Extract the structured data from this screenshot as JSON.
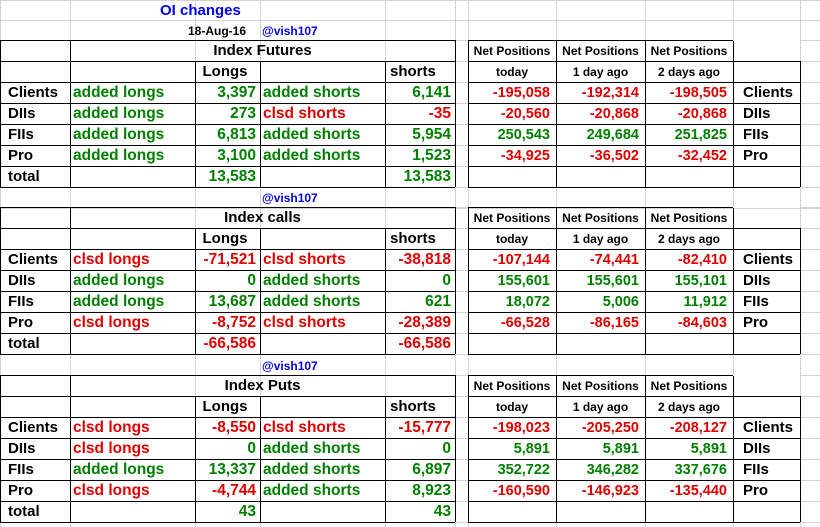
{
  "title": "OI changes",
  "date": "18-Aug-16",
  "handle": "@vish107",
  "colors": {
    "positive": "#008000",
    "negative": "#e00000",
    "accent": "#0000ee",
    "grid": "#000000"
  },
  "headers": {
    "longs": "Longs",
    "shorts": "shorts",
    "net_positions": "Net Positions",
    "today": "today",
    "one_day_ago": "1 day ago",
    "two_days_ago": "2 days ago",
    "total": "total"
  },
  "sections": [
    {
      "title": "Index Futures",
      "rows": [
        {
          "label": "Clients",
          "long_action": "added longs",
          "longs": "3,397",
          "short_action": "added shorts",
          "shorts": "6,141",
          "net": [
            "-195,058",
            "-192,314",
            "-198,505"
          ]
        },
        {
          "label": "DIIs",
          "long_action": "added longs",
          "longs": "273",
          "short_action": "clsd shorts",
          "shorts": "-35",
          "net": [
            "-20,560",
            "-20,868",
            "-20,868"
          ]
        },
        {
          "label": "FIIs",
          "long_action": "added longs",
          "longs": "6,813",
          "short_action": "added shorts",
          "shorts": "5,954",
          "net": [
            "250,543",
            "249,684",
            "251,825"
          ]
        },
        {
          "label": "Pro",
          "long_action": "added longs",
          "longs": "3,100",
          "short_action": "added shorts",
          "shorts": "1,523",
          "net": [
            "-34,925",
            "-36,502",
            "-32,452"
          ]
        }
      ],
      "total_longs": "13,583",
      "total_shorts": "13,583"
    },
    {
      "title": "Index calls",
      "rows": [
        {
          "label": "Clients",
          "long_action": "clsd longs",
          "longs": "-71,521",
          "short_action": "clsd shorts",
          "shorts": "-38,818",
          "net": [
            "-107,144",
            "-74,441",
            "-82,410"
          ]
        },
        {
          "label": "DIIs",
          "long_action": "added longs",
          "longs": "0",
          "short_action": "added shorts",
          "shorts": "0",
          "net": [
            "155,601",
            "155,601",
            "155,101"
          ]
        },
        {
          "label": "FIIs",
          "long_action": "added longs",
          "longs": "13,687",
          "short_action": "added shorts",
          "shorts": "621",
          "net": [
            "18,072",
            "5,006",
            "11,912"
          ]
        },
        {
          "label": "Pro",
          "long_action": "clsd longs",
          "longs": "-8,752",
          "short_action": "clsd shorts",
          "shorts": "-28,389",
          "net": [
            "-66,528",
            "-86,165",
            "-84,603"
          ]
        }
      ],
      "total_longs": "-66,586",
      "total_shorts": "-66,586"
    },
    {
      "title": "Index Puts",
      "rows": [
        {
          "label": "Clients",
          "long_action": "clsd longs",
          "longs": "-8,550",
          "short_action": "clsd shorts",
          "shorts": "-15,777",
          "net": [
            "-198,023",
            "-205,250",
            "-208,127"
          ]
        },
        {
          "label": "DIIs",
          "long_action": "clsd longs",
          "longs": "0",
          "short_action": "added shorts",
          "shorts": "0",
          "net": [
            "5,891",
            "5,891",
            "5,891"
          ]
        },
        {
          "label": "FIIs",
          "long_action": "added longs",
          "longs": "13,337",
          "short_action": "added shorts",
          "shorts": "6,897",
          "net": [
            "352,722",
            "346,282",
            "337,676"
          ]
        },
        {
          "label": "Pro",
          "long_action": "clsd longs",
          "longs": "-4,744",
          "short_action": "added shorts",
          "shorts": "8,923",
          "net": [
            "-160,590",
            "-146,923",
            "-135,440"
          ]
        }
      ],
      "total_longs": "43",
      "total_shorts": "43"
    }
  ]
}
